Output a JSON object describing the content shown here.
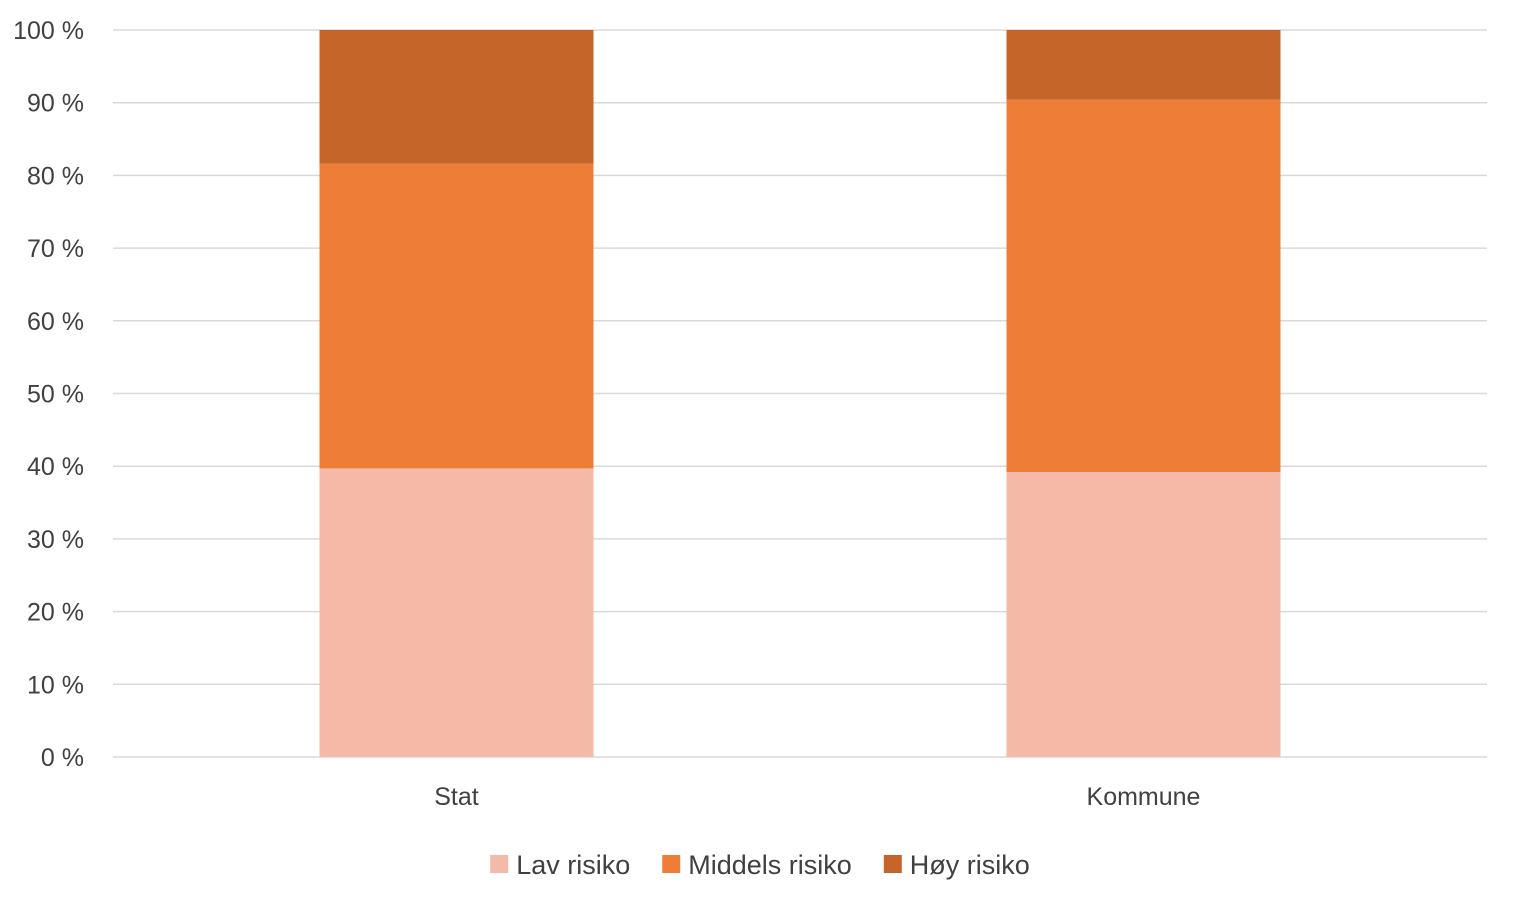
{
  "chart_data": {
    "type": "bar",
    "stacked": true,
    "percent_stacked": true,
    "categories": [
      "Stat",
      "Kommune"
    ],
    "series": [
      {
        "name": "Lav risiko",
        "values": [
          39.7,
          39.2
        ],
        "color": "#F4B9A7"
      },
      {
        "name": "Middels risiko",
        "values": [
          41.9,
          51.2
        ],
        "color": "#EE7D37"
      },
      {
        "name": "Høy risiko",
        "values": [
          18.4,
          9.6
        ],
        "color": "#C5652A"
      }
    ],
    "ylim": [
      0,
      100
    ],
    "yticks": [
      "0 %",
      "10 %",
      "20 %",
      "30 %",
      "40 %",
      "50 %",
      "60 %",
      "70 %",
      "80 %",
      "90 %",
      "100 %"
    ],
    "title": "",
    "xlabel": "",
    "ylabel": "",
    "grid": true,
    "legend_position": "bottom",
    "gridline_color": "#D9D9D9"
  }
}
